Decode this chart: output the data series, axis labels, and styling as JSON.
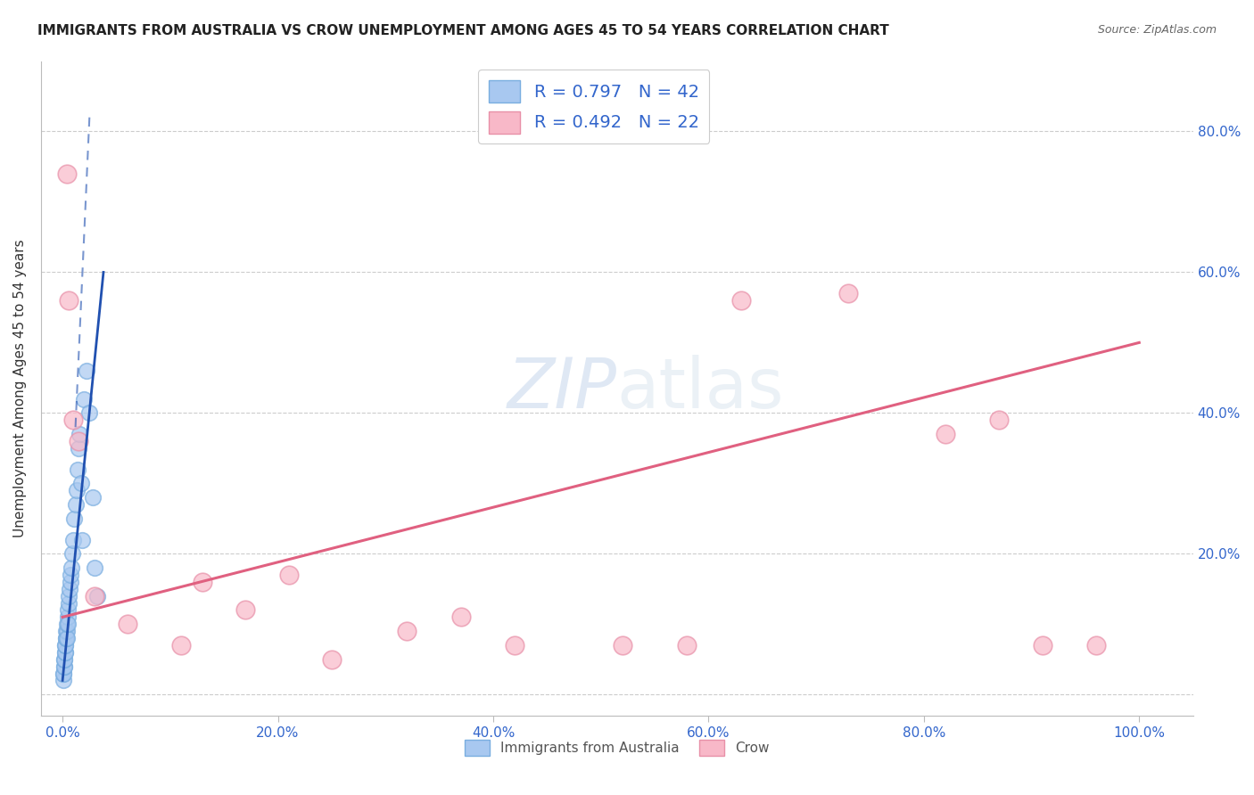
{
  "title": "IMMIGRANTS FROM AUSTRALIA VS CROW UNEMPLOYMENT AMONG AGES 45 TO 54 YEARS CORRELATION CHART",
  "source": "Source: ZipAtlas.com",
  "ylabel": "Unemployment Among Ages 45 to 54 years",
  "legend_label1": "Immigrants from Australia",
  "legend_label2": "Crow",
  "r1": "0.797",
  "n1": "42",
  "r2": "0.492",
  "n2": "22",
  "color_blue_fill": "#A8C8F0",
  "color_blue_edge": "#7AAEE0",
  "color_pink_fill": "#F8B8C8",
  "color_pink_edge": "#E890A8",
  "color_blue_line": "#2050B0",
  "color_pink_line": "#E06080",
  "color_axis_text": "#3366CC",
  "color_title": "#222222",
  "color_source": "#666666",
  "color_grid": "#CCCCCC",
  "watermark_text": "ZIPatlas",
  "background_color": "#FFFFFF",
  "blue_scatter_x": [
    0.05,
    0.08,
    0.1,
    0.12,
    0.15,
    0.15,
    0.18,
    0.2,
    0.22,
    0.25,
    0.28,
    0.3,
    0.32,
    0.35,
    0.38,
    0.4,
    0.42,
    0.45,
    0.48,
    0.5,
    0.55,
    0.6,
    0.65,
    0.7,
    0.75,
    0.8,
    0.9,
    1.0,
    1.1,
    1.2,
    1.3,
    1.4,
    1.5,
    1.6,
    1.7,
    1.8,
    2.0,
    2.2,
    2.5,
    2.8,
    3.0,
    3.2
  ],
  "blue_scatter_y": [
    2,
    3,
    3,
    4,
    4,
    5,
    5,
    6,
    6,
    7,
    7,
    8,
    8,
    9,
    9,
    8,
    10,
    11,
    12,
    10,
    13,
    14,
    15,
    16,
    17,
    18,
    20,
    22,
    25,
    27,
    29,
    32,
    35,
    37,
    30,
    22,
    42,
    46,
    40,
    28,
    18,
    14
  ],
  "pink_scatter_x": [
    0.4,
    0.6,
    1.0,
    1.5,
    3.0,
    6.0,
    11.0,
    13.0,
    17.0,
    21.0,
    25.0,
    32.0,
    37.0,
    42.0,
    52.0,
    58.0,
    63.0,
    73.0,
    82.0,
    87.0,
    91.0,
    96.0
  ],
  "pink_scatter_y": [
    74,
    56,
    39,
    36,
    14,
    10,
    7,
    16,
    12,
    17,
    5,
    9,
    11,
    7,
    7,
    7,
    56,
    57,
    37,
    39,
    7,
    7
  ],
  "blue_line_x1": 0.0,
  "blue_line_y1": 2.0,
  "blue_line_x2": 3.8,
  "blue_line_y2": 60.0,
  "blue_dash_x1": 1.2,
  "blue_dash_y1": 38.0,
  "blue_dash_x2": 2.5,
  "blue_dash_y2": 82.0,
  "pink_line_x1": 0.0,
  "pink_line_y1": 11.0,
  "pink_line_x2": 100.0,
  "pink_line_y2": 50.0,
  "xlim": [
    -2,
    105
  ],
  "ylim": [
    -3,
    90
  ],
  "x_ticks": [
    0,
    20,
    40,
    60,
    80,
    100
  ],
  "y_ticks": [
    0,
    20,
    40,
    60,
    80
  ],
  "x_tick_labels": [
    "0.0%",
    "20.0%",
    "40.0%",
    "60.0%",
    "80.0%",
    "100.0%"
  ],
  "y_tick_labels_right": [
    "",
    "20.0%",
    "40.0%",
    "60.0%",
    "80.0%"
  ]
}
